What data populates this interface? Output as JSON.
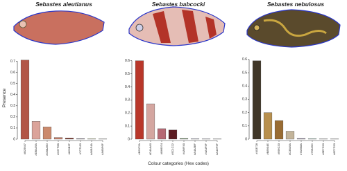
{
  "chart_data": [
    {
      "type": "bar",
      "title": "Sebastes aleutianus",
      "y_label": "Presence",
      "categories": [
        "#B25647",
        "#DBA39A",
        "#CB8A6D",
        "#C67F6B",
        "#803B2F",
        "#7C7183",
        "#A6BF4A",
        "#A6BF6F"
      ],
      "values": [
        0.71,
        0.16,
        0.11,
        0.015,
        0.01,
        0.005,
        0.003,
        0.002
      ],
      "colors": [
        "#b25647",
        "#dba39a",
        "#cb8a6d",
        "#c67f6b",
        "#803b2f",
        "#7c7183",
        "#a6bf4a",
        "#a6bf6f"
      ],
      "ylim": [
        0,
        0.74
      ],
      "yticks": [
        0,
        0.1,
        0.2,
        0.3,
        0.4,
        0.5,
        0.6,
        0.7
      ]
    },
    {
      "type": "bar",
      "title": "Sebastes babcocki",
      "x_label": "Colour categories (Hex codes)",
      "categories": [
        "#B9372A",
        "#D4A6A0",
        "#B66974",
        "#5C1C22",
        "#4A6F40",
        "#A4A5BF",
        "#4A4F9F",
        "#A4DF9F"
      ],
      "values": [
        0.6,
        0.27,
        0.08,
        0.07,
        0.005,
        0.003,
        0.002,
        0.001
      ],
      "colors": [
        "#b9372a",
        "#d4a6a0",
        "#b66974",
        "#5c1c22",
        "#4a6f40",
        "#a4a5bf",
        "#4a4f9f",
        "#a4df9f"
      ],
      "ylim": [
        0,
        0.63
      ],
      "yticks": [
        0,
        0.1,
        0.2,
        0.3,
        0.4,
        0.5,
        0.6
      ]
    },
    {
      "type": "bar",
      "title": "Sebastes nebulosus",
      "categories": [
        "#403728",
        "#B8904E",
        "#996C33",
        "#C3B49A",
        "#7A6B8A",
        "#79B29C",
        "#8E7C93",
        "#8C7C93"
      ],
      "values": [
        0.59,
        0.2,
        0.14,
        0.06,
        0.005,
        0.003,
        0.002,
        0.001
      ],
      "colors": [
        "#403728",
        "#b8904e",
        "#996c33",
        "#c3b49a",
        "#7a6b8a",
        "#79b29c",
        "#8e7c93",
        "#8c7c93"
      ],
      "ylim": [
        0,
        0.62
      ],
      "yticks": [
        0,
        0.1,
        0.2,
        0.3,
        0.4,
        0.5,
        0.6
      ]
    }
  ]
}
